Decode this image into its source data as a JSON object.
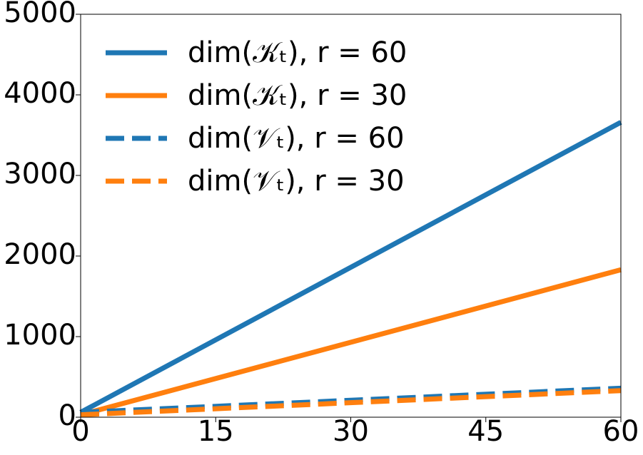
{
  "chart_data": {
    "type": "line",
    "x": [
      0,
      60
    ],
    "series": [
      {
        "name": "dim(𝒦ₜ),  r = 60",
        "color": "#1f77b4",
        "linestyle": "solid",
        "values": [
          60,
          3660
        ]
      },
      {
        "name": "dim(𝒦ₜ),  r = 30",
        "color": "#ff7f0e",
        "linestyle": "solid",
        "values": [
          30,
          1830
        ]
      },
      {
        "name": "dim(𝒱ₜ),  r = 60",
        "color": "#1f77b4",
        "linestyle": "dashed",
        "values": [
          60,
          360
        ]
      },
      {
        "name": "dim(𝒱ₜ),  r = 30",
        "color": "#ff7f0e",
        "linestyle": "dashed",
        "values": [
          30,
          330
        ]
      }
    ],
    "xlim": [
      0,
      60
    ],
    "xticks": [
      0,
      15,
      30,
      45,
      60
    ],
    "ylim": [
      0,
      5000
    ],
    "yticks": [
      0,
      1000,
      2000,
      3000,
      4000,
      5000
    ],
    "grid": false,
    "legend": "upper left"
  }
}
